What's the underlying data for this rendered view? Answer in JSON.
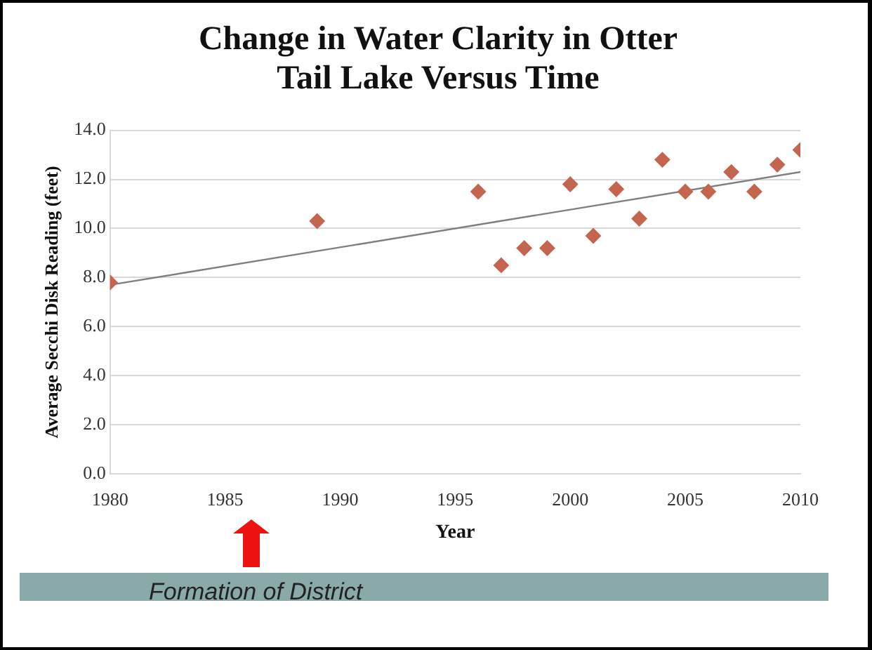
{
  "chart_data": {
    "type": "scatter",
    "title": "Change in Water Clarity in Otter Tail Lake Versus Time",
    "xlabel": "Year",
    "ylabel": "Average Secchi Disk Reading (feet)",
    "x": [
      1980,
      1989,
      1996,
      1997,
      1998,
      1999,
      2000,
      2001,
      2002,
      2003,
      2004,
      2005,
      2006,
      2007,
      2008,
      2009,
      2010
    ],
    "series": [
      {
        "type": "scatter",
        "color": "#c4654f",
        "marker": "diamond",
        "values": [
          7.8,
          10.3,
          11.5,
          8.5,
          9.2,
          9.2,
          11.8,
          9.7,
          11.6,
          10.4,
          12.8,
          11.5,
          11.5,
          12.3,
          11.5,
          12.6,
          13.2
        ]
      },
      {
        "type": "line",
        "color": "#7f7f7f",
        "marker": "none",
        "line_style": "solid",
        "x": [
          1980,
          2010
        ],
        "values": [
          7.7,
          12.3
        ]
      }
    ],
    "xlim": [
      1980,
      2010
    ],
    "xticks": [
      1980,
      1985,
      1990,
      1995,
      2000,
      2005,
      2010
    ],
    "ylim": [
      0,
      14
    ],
    "yticks": [
      {
        "value": 0,
        "label": "0.0"
      },
      {
        "value": 2,
        "label": "2.0"
      },
      {
        "value": 4,
        "label": "4.0"
      },
      {
        "value": 6,
        "label": "6.0"
      },
      {
        "value": 8,
        "label": "8.0"
      },
      {
        "value": 10,
        "label": "10.0"
      },
      {
        "value": 12,
        "label": "12.0"
      },
      {
        "value": 14,
        "label": "14.0"
      }
    ],
    "grid": "y",
    "annotations": [
      "Formation of District"
    ]
  }
}
